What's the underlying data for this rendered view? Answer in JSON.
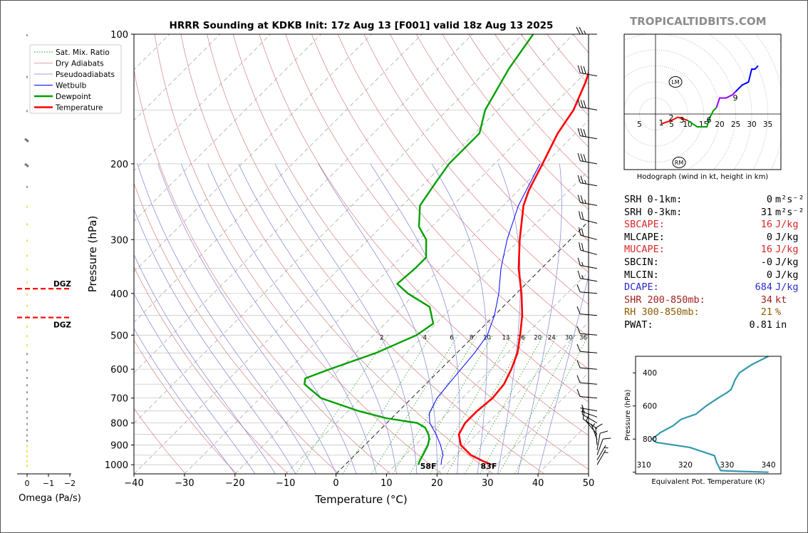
{
  "title": "HRRR Sounding at KDKB Init: 17z Aug 13 [F001] valid 18z Aug 13 2025",
  "brand": "TROPICALTIDBITS.COM",
  "colors": {
    "temperature": "#ff0000",
    "dewpoint": "#00a000",
    "wetbulb": "#0000ff",
    "theta_e": "#3399aa",
    "dgz": "#ff0000",
    "dry": "#cc4444",
    "moist": "#4444cc"
  },
  "chart_data": [
    {
      "type": "line",
      "name": "skewt",
      "title": "HRRR Sounding at KDKB Init: 17z Aug 13 [F001] valid 18z Aug 13 2025",
      "xlabel": "Temperature (°C)",
      "ylabel": "Pressure (hPa)",
      "x_ticks": [
        "−40",
        "−30",
        "−20",
        "−10",
        "0",
        "10",
        "20",
        "30",
        "40",
        "50"
      ],
      "xlim": [
        -40,
        50
      ],
      "y_ticks": [
        {
          "p": 100,
          "label": "100"
        },
        {
          "p": 200,
          "label": "200"
        },
        {
          "p": 300,
          "label": "300"
        },
        {
          "p": 400,
          "label": "400"
        },
        {
          "p": 500,
          "label": "500"
        },
        {
          "p": 600,
          "label": "600"
        },
        {
          "p": 700,
          "label": "700"
        },
        {
          "p": 800,
          "label": "800"
        },
        {
          "p": 900,
          "label": "900"
        },
        {
          "p": 1000,
          "label": "1000"
        }
      ],
      "ylim": [
        1050,
        100
      ],
      "log_y": true,
      "legend": {
        "position": "top-left",
        "entries": [
          "Sat. Mix. Ratio",
          "Dry Adiabats",
          "Pseudoadiabats",
          "Wetbulb",
          "Dewpoint",
          "Temperature"
        ]
      },
      "mixing_ratio_labels": [
        "2",
        "4",
        "6",
        "8",
        "10",
        "13",
        "16",
        "20",
        "24",
        "30",
        "36"
      ],
      "series": [
        {
          "name": "Temperature",
          "color": "#ff0000",
          "points": [
            [
              1000,
              29
            ],
            [
              980,
              26.5
            ],
            [
              950,
              23
            ],
            [
              900,
              19
            ],
            [
              850,
              16.5
            ],
            [
              800,
              15.5
            ],
            [
              750,
              15.5
            ],
            [
              700,
              16
            ],
            [
              650,
              15.5
            ],
            [
              600,
              14
            ],
            [
              550,
              12
            ],
            [
              500,
              9
            ],
            [
              450,
              5.5
            ],
            [
              400,
              1
            ],
            [
              350,
              -4.5
            ],
            [
              300,
              -10
            ],
            [
              250,
              -16
            ],
            [
              230,
              -18
            ],
            [
              200,
              -20.5
            ],
            [
              170,
              -23.5
            ],
            [
              150,
              -25
            ],
            [
              130,
              -28
            ],
            [
              115,
              -31
            ],
            [
              100,
              -34
            ]
          ]
        },
        {
          "name": "Dewpoint",
          "color": "#00a000",
          "points": [
            [
              1000,
              14.5
            ],
            [
              980,
              14
            ],
            [
              950,
              13.5
            ],
            [
              900,
              12.5
            ],
            [
              870,
              11.5
            ],
            [
              850,
              10.5
            ],
            [
              820,
              8.5
            ],
            [
              800,
              6
            ],
            [
              780,
              -1
            ],
            [
              750,
              -8
            ],
            [
              700,
              -18
            ],
            [
              650,
              -24
            ],
            [
              630,
              -25
            ],
            [
              600,
              -22
            ],
            [
              550,
              -16
            ],
            [
              500,
              -11.5
            ],
            [
              470,
              -10.5
            ],
            [
              430,
              -14.5
            ],
            [
              400,
              -21.5
            ],
            [
              380,
              -25.5
            ],
            [
              350,
              -25
            ],
            [
              330,
              -25
            ],
            [
              300,
              -28.5
            ],
            [
              280,
              -32.5
            ],
            [
              250,
              -36.5
            ],
            [
              220,
              -38
            ],
            [
              200,
              -39
            ],
            [
              170,
              -39
            ],
            [
              150,
              -42.5
            ],
            [
              120,
              -46
            ],
            [
              100,
              -48
            ]
          ]
        },
        {
          "name": "Wetbulb",
          "color": "#0000ff",
          "points": [
            [
              1000,
              19
            ],
            [
              970,
              18
            ],
            [
              950,
              17.5
            ],
            [
              900,
              15
            ],
            [
              850,
              12
            ],
            [
              800,
              8.5
            ],
            [
              760,
              6.5
            ],
            [
              720,
              5.5
            ],
            [
              700,
              5
            ],
            [
              650,
              4.5
            ],
            [
              600,
              4
            ],
            [
              550,
              3.5
            ],
            [
              500,
              2.5
            ],
            [
              450,
              0
            ],
            [
              400,
              -3.5
            ],
            [
              350,
              -8
            ],
            [
              300,
              -12.5
            ],
            [
              250,
              -17
            ],
            [
              200,
              -21
            ]
          ]
        }
      ],
      "surface_temperature_label": "83F",
      "surface_dewpoint_label": "58F",
      "wind_barbs_kt": [
        {
          "p": 1000,
          "spd": 5,
          "dir": 30
        },
        {
          "p": 975,
          "spd": 6,
          "dir": 30
        },
        {
          "p": 950,
          "spd": 8,
          "dir": 20
        },
        {
          "p": 925,
          "spd": 8,
          "dir": 10
        },
        {
          "p": 900,
          "spd": 8,
          "dir": 355
        },
        {
          "p": 875,
          "spd": 6,
          "dir": 340
        },
        {
          "p": 850,
          "spd": 8,
          "dir": 320
        },
        {
          "p": 825,
          "spd": 9,
          "dir": 305
        },
        {
          "p": 800,
          "spd": 10,
          "dir": 300
        },
        {
          "p": 775,
          "spd": 6,
          "dir": 290
        },
        {
          "p": 750,
          "spd": 5,
          "dir": 280
        },
        {
          "p": 700,
          "spd": 8,
          "dir": 275
        },
        {
          "p": 650,
          "spd": 10,
          "dir": 275
        },
        {
          "p": 600,
          "spd": 10,
          "dir": 275
        },
        {
          "p": 550,
          "spd": 10,
          "dir": 275
        },
        {
          "p": 500,
          "spd": 10,
          "dir": 275
        },
        {
          "p": 450,
          "spd": 10,
          "dir": 275
        },
        {
          "p": 400,
          "spd": 12,
          "dir": 275
        },
        {
          "p": 375,
          "spd": 14,
          "dir": 280
        },
        {
          "p": 350,
          "spd": 15,
          "dir": 280
        },
        {
          "p": 325,
          "spd": 18,
          "dir": 285
        },
        {
          "p": 300,
          "spd": 20,
          "dir": 285
        },
        {
          "p": 275,
          "spd": 22,
          "dir": 285
        },
        {
          "p": 250,
          "spd": 25,
          "dir": 280
        },
        {
          "p": 225,
          "spd": 25,
          "dir": 280
        },
        {
          "p": 200,
          "spd": 28,
          "dir": 280
        },
        {
          "p": 175,
          "spd": 30,
          "dir": 280
        },
        {
          "p": 150,
          "spd": 30,
          "dir": 280
        },
        {
          "p": 125,
          "spd": 32,
          "dir": 280
        },
        {
          "p": 100,
          "spd": 25,
          "dir": 270
        }
      ]
    },
    {
      "type": "line",
      "name": "omega",
      "xlabel": "Omega (Pa/s)",
      "x_ticks": [
        "0",
        "−1",
        "−2"
      ],
      "dgz_label": "DGZ",
      "dgz_top_p": 390,
      "dgz_bottom_p": 455
    },
    {
      "type": "line",
      "name": "hodograph",
      "caption": "Hodograph (wind in kt, height in km)",
      "ring_labels": [
        "5",
        "5",
        "10",
        "15",
        "20",
        "25",
        "30",
        "35"
      ],
      "height_labels": [
        "1",
        "2",
        "3",
        "6",
        "9"
      ],
      "motion_labels": [
        "LM",
        "RM"
      ],
      "points_kt": [
        [
          2,
          -3
        ],
        [
          5,
          -2
        ],
        [
          7,
          -1
        ],
        [
          10,
          -2
        ],
        [
          13,
          -4
        ],
        [
          16,
          -4
        ],
        [
          17,
          -1
        ],
        [
          18,
          1
        ],
        [
          19,
          2
        ],
        [
          20,
          5
        ],
        [
          22,
          5
        ],
        [
          24,
          6
        ],
        [
          25,
          7
        ],
        [
          27,
          9
        ],
        [
          29,
          10
        ],
        [
          30,
          14
        ],
        [
          31,
          14
        ],
        [
          32,
          15
        ]
      ],
      "segment_colors": [
        "#ff0000",
        "#00a000",
        "#00a000",
        "#9900ff",
        "#0000ff"
      ]
    },
    {
      "type": "line",
      "name": "theta-e",
      "xlabel": "Equivalent Pot. Temperature (K)",
      "ylabel": "Pressure (hPa)",
      "x_ticks": [
        "310",
        "320",
        "330",
        "340"
      ],
      "xlim": [
        308,
        343
      ],
      "y_ticks": [
        "400",
        "600",
        "800"
      ],
      "ylim": [
        1010,
        300
      ],
      "points": [
        [
          1000,
          340
        ],
        [
          995,
          333
        ],
        [
          990,
          328.5
        ],
        [
          940,
          327.5
        ],
        [
          900,
          327
        ],
        [
          850,
          321
        ],
        [
          820,
          313
        ],
        [
          800,
          312
        ],
        [
          760,
          314
        ],
        [
          720,
          317
        ],
        [
          680,
          319
        ],
        [
          650,
          322.5
        ],
        [
          600,
          325
        ],
        [
          550,
          328
        ],
        [
          520,
          330
        ],
        [
          500,
          331
        ],
        [
          440,
          332
        ],
        [
          400,
          333
        ],
        [
          350,
          336
        ],
        [
          300,
          340
        ]
      ]
    }
  ],
  "params": [
    {
      "label": "SRH 0-1km:",
      "value": "0",
      "unit": "m²s⁻²",
      "color": "#000000"
    },
    {
      "label": "SRH 0-3km:",
      "value": "31",
      "unit": "m²s⁻²",
      "color": "#000000"
    },
    {
      "label": "SBCAPE:",
      "value": "16",
      "unit": "J/kg",
      "color": "#d62728"
    },
    {
      "label": "MLCAPE:",
      "value": "0",
      "unit": "J/kg",
      "color": "#000000"
    },
    {
      "label": "MUCAPE:",
      "value": "16",
      "unit": "J/kg",
      "color": "#d62728"
    },
    {
      "label": "SBCIN:",
      "value": "-0",
      "unit": "J/kg",
      "color": "#000000"
    },
    {
      "label": "MLCIN:",
      "value": "0",
      "unit": "J/kg",
      "color": "#000000"
    },
    {
      "label": "DCAPE:",
      "value": "684",
      "unit": "J/kg",
      "color": "#2a2ac8"
    },
    {
      "label": "SHR 200-850mb:",
      "value": "34",
      "unit": "kt",
      "color": "#a02020"
    },
    {
      "label": "RH 300-850mb:",
      "value": "21",
      "unit": "%",
      "color": "#8b5a00"
    },
    {
      "label": "PWAT:",
      "value": "0.81",
      "unit": "in",
      "color": "#000000"
    }
  ]
}
